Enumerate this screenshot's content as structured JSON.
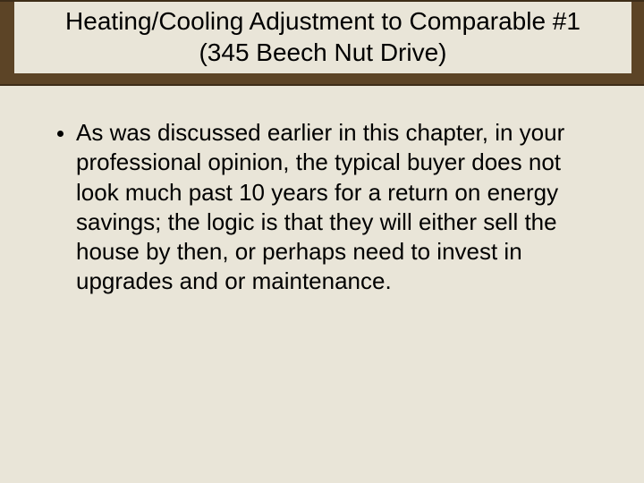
{
  "slide": {
    "title_line1": "Heating/Cooling Adjustment to Comparable #1",
    "title_line2": "(345 Beech Nut Drive)",
    "bullets": [
      {
        "text": "As was discussed earlier in this chapter, in your professional opinion, the typical buyer does not look much past 10 years for a return on energy savings; the logic is that they will either sell the house by then, or perhaps need to invest in upgrades and or maintenance."
      }
    ]
  },
  "style": {
    "background_color": "#e9e5d8",
    "title_band_color": "#5c4426",
    "title_band_border": "#3d2d18",
    "title_fontsize": 28,
    "body_fontsize": 26,
    "text_color": "#000000",
    "bullet_color": "#000000"
  }
}
